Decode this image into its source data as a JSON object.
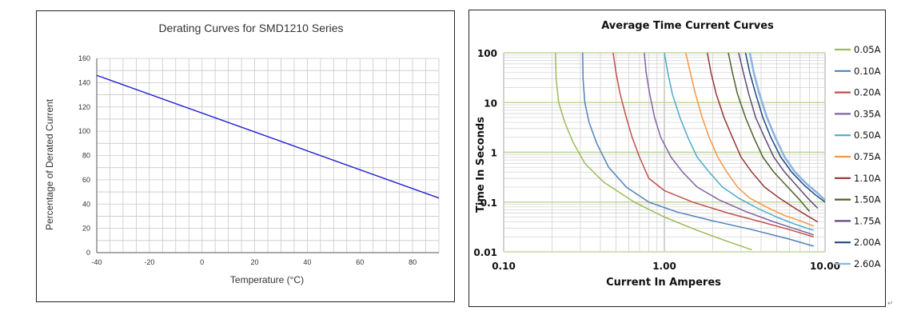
{
  "chart_data": [
    {
      "type": "line",
      "title": "Derating Curves for SMD1210 Series",
      "xlabel": "Temperature (°C)",
      "ylabel": "Percentage of Derated Current",
      "xlim": [
        -40,
        90
      ],
      "ylim": [
        0,
        160
      ],
      "x_ticks": [
        "-40",
        "-20",
        "0",
        "20",
        "40",
        "60",
        "80"
      ],
      "y_ticks": [
        "0",
        "20",
        "40",
        "60",
        "80",
        "100",
        "120",
        "140",
        "160"
      ],
      "grid": true,
      "colors": {
        "line": "#1f1fd6",
        "grid": "#c8c8c8"
      },
      "series": [
        {
          "x": [
            -40,
            90
          ],
          "values": [
            146,
            45
          ]
        }
      ]
    },
    {
      "type": "line",
      "title": "Average Time Current Curves",
      "xlabel": "Current In Amperes",
      "ylabel": "Time In Seconds",
      "x_scale": "log",
      "y_scale": "log",
      "xlim": [
        0.1,
        10
      ],
      "ylim": [
        0.01,
        100
      ],
      "x_ticks": [
        "0.10",
        "1.00",
        "10.00"
      ],
      "y_ticks": [
        "0.01",
        "0.1",
        "1",
        "10",
        "100"
      ],
      "grid": true,
      "legend": "right",
      "series": [
        {
          "name": "0.05A",
          "color": "#9bbb59",
          "x": [
            0.21,
            0.212,
            0.22,
            0.24,
            0.27,
            0.32,
            0.42,
            0.65,
            1.0,
            1.6,
            2.5,
            3.5
          ],
          "values": [
            100,
            30,
            10,
            4,
            1.6,
            0.6,
            0.25,
            0.1,
            0.05,
            0.027,
            0.016,
            0.011
          ]
        },
        {
          "name": "0.10A",
          "color": "#4f81bd",
          "x": [
            0.31,
            0.312,
            0.32,
            0.34,
            0.38,
            0.45,
            0.58,
            0.8,
            1.2,
            2.0,
            3.5,
            6.0,
            8.5
          ],
          "values": [
            100,
            30,
            10,
            4,
            1.5,
            0.5,
            0.2,
            0.1,
            0.063,
            0.042,
            0.028,
            0.018,
            0.013
          ]
        },
        {
          "name": "0.20A",
          "color": "#c0504d",
          "x": [
            0.48,
            0.5,
            0.53,
            0.58,
            0.63,
            0.7,
            0.8,
            1.0,
            1.5,
            2.5,
            4.0,
            6.0,
            8.5
          ],
          "values": [
            100,
            40,
            15,
            5,
            2,
            0.8,
            0.3,
            0.17,
            0.1,
            0.06,
            0.04,
            0.028,
            0.02
          ]
        },
        {
          "name": "0.35A",
          "color": "#8064a2",
          "x": [
            0.75,
            0.77,
            0.81,
            0.87,
            0.95,
            1.1,
            1.3,
            1.6,
            2.2,
            3.2,
            4.8,
            6.5,
            8.5
          ],
          "values": [
            100,
            40,
            15,
            5,
            2,
            0.8,
            0.4,
            0.2,
            0.11,
            0.065,
            0.04,
            0.029,
            0.022
          ]
        },
        {
          "name": "0.50A",
          "color": "#4bacc6",
          "x": [
            1.0,
            1.05,
            1.12,
            1.25,
            1.4,
            1.6,
            1.9,
            2.3,
            2.9,
            3.8,
            5.0,
            6.5,
            8.5
          ],
          "values": [
            100,
            40,
            15,
            5,
            2,
            0.8,
            0.4,
            0.2,
            0.12,
            0.075,
            0.05,
            0.036,
            0.027
          ]
        },
        {
          "name": "0.75A",
          "color": "#f79646",
          "x": [
            1.36,
            1.45,
            1.56,
            1.72,
            1.9,
            2.15,
            2.45,
            2.85,
            3.4,
            4.3,
            5.5,
            7.0,
            8.5
          ],
          "values": [
            100,
            40,
            15,
            5,
            2,
            0.8,
            0.4,
            0.2,
            0.12,
            0.08,
            0.055,
            0.042,
            0.033
          ]
        },
        {
          "name": "1.10A",
          "color": "#943634",
          "x": [
            1.85,
            1.95,
            2.1,
            2.35,
            2.65,
            3.0,
            3.5,
            4.2,
            5.2,
            6.5,
            8.0,
            9.0
          ],
          "values": [
            100,
            40,
            15,
            5,
            2,
            0.8,
            0.4,
            0.2,
            0.12,
            0.075,
            0.05,
            0.04
          ]
        },
        {
          "name": "1.50A",
          "color": "#4f6228",
          "x": [
            2.5,
            2.65,
            2.85,
            3.2,
            3.6,
            4.1,
            4.8,
            5.7,
            6.8,
            8.0
          ],
          "values": [
            100,
            40,
            15,
            5,
            2,
            0.8,
            0.4,
            0.22,
            0.12,
            0.065
          ]
        },
        {
          "name": "1.75A",
          "color": "#5f497a",
          "x": [
            2.9,
            3.1,
            3.35,
            3.7,
            4.2,
            4.8,
            5.6,
            6.6,
            7.8,
            9.0
          ],
          "values": [
            100,
            40,
            15,
            5,
            2,
            0.8,
            0.4,
            0.22,
            0.12,
            0.075
          ]
        },
        {
          "name": "2.00A",
          "color": "#1f497d",
          "x": [
            3.2,
            3.4,
            3.7,
            4.1,
            4.6,
            5.3,
            6.2,
            7.4,
            8.7,
            10.0
          ],
          "values": [
            100,
            40,
            15,
            5,
            2,
            0.8,
            0.4,
            0.22,
            0.14,
            0.1
          ]
        },
        {
          "name": "2.60A",
          "color": "#8db3e2",
          "x": [
            3.4,
            3.6,
            3.9,
            4.35,
            4.9,
            5.6,
            6.5,
            7.7,
            9.0,
            10.0
          ],
          "values": [
            100,
            40,
            15,
            5,
            2,
            0.8,
            0.4,
            0.23,
            0.15,
            0.11
          ]
        }
      ]
    }
  ]
}
